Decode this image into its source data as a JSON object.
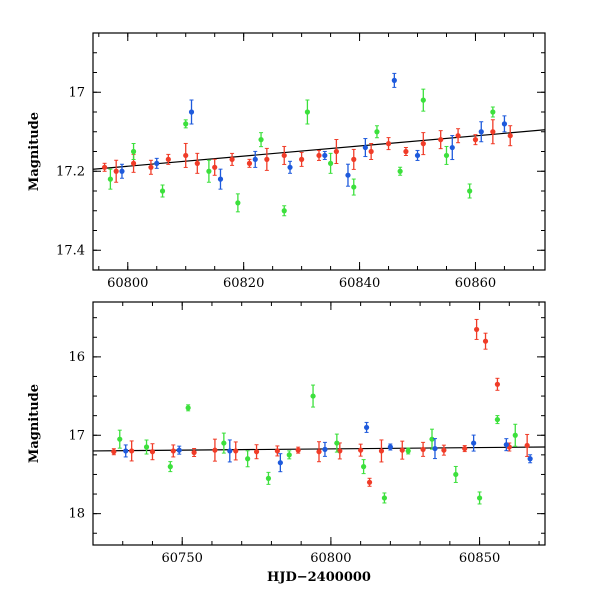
{
  "chart_data": [
    {
      "type": "scatter",
      "title": "",
      "xlabel": "",
      "ylabel": "Magnitude",
      "xlim": [
        60794,
        60872
      ],
      "ylim": [
        17.45,
        16.85
      ],
      "y_inverted": true,
      "grid": false,
      "xticks": [
        60800,
        60820,
        60840,
        60860
      ],
      "yticks": [
        17,
        17.2,
        17.4
      ],
      "xtick_labels": [
        "60800",
        "60820",
        "60840",
        "60860"
      ],
      "ytick_labels": [
        "17",
        "17.2",
        "17.4"
      ],
      "colors": {
        "red": "#f03c28",
        "green": "#3ce03c",
        "blue": "#1e5adc"
      },
      "trend_line": {
        "x": [
          60794,
          60872
        ],
        "y": [
          17.195,
          17.095
        ]
      },
      "series": [
        {
          "color": "red",
          "x": [
            60796,
            60798,
            60801,
            60804,
            60807,
            60810,
            60812,
            60815,
            60818,
            60821,
            60824,
            60827,
            60830,
            60833,
            60836,
            60839,
            60842,
            60845,
            60848,
            60851,
            60854,
            60857,
            60860,
            60863,
            60866
          ],
          "y": [
            17.19,
            17.2,
            17.18,
            17.19,
            17.17,
            17.16,
            17.18,
            17.19,
            17.17,
            17.18,
            17.17,
            17.16,
            17.17,
            17.16,
            17.15,
            17.17,
            17.15,
            17.13,
            17.15,
            17.13,
            17.12,
            17.11,
            17.12,
            17.1,
            17.11
          ]
        },
        {
          "color": "green",
          "x": [
            60797,
            60801,
            60806,
            60810,
            60814,
            60819,
            60823,
            60827,
            60831,
            60835,
            60839,
            60843,
            60847,
            60851,
            60855,
            60859,
            60863
          ],
          "y": [
            17.22,
            17.15,
            17.25,
            17.08,
            17.2,
            17.28,
            17.12,
            17.3,
            17.05,
            17.18,
            17.24,
            17.1,
            17.2,
            17.02,
            17.16,
            17.25,
            17.05
          ]
        },
        {
          "color": "blue",
          "x": [
            60799,
            60805,
            60811,
            60816,
            60822,
            60828,
            60834,
            60838,
            60841,
            60846,
            60850,
            60856,
            60861,
            60865
          ],
          "y": [
            17.2,
            17.18,
            17.05,
            17.22,
            17.17,
            17.19,
            17.16,
            17.21,
            17.14,
            16.97,
            17.16,
            17.14,
            17.1,
            17.08
          ]
        }
      ]
    },
    {
      "type": "scatter",
      "title": "",
      "xlabel": "HJD−2400000",
      "ylabel": "Magnitude",
      "xlim": [
        60720,
        60872
      ],
      "ylim": [
        18.4,
        15.3
      ],
      "y_inverted": true,
      "grid": false,
      "xticks": [
        60750,
        60800,
        60850
      ],
      "yticks": [
        16,
        17,
        18
      ],
      "xtick_labels": [
        "60750",
        "60800",
        "60850"
      ],
      "ytick_labels": [
        "16",
        "17",
        "18"
      ],
      "colors": {
        "red": "#f03c28",
        "green": "#3ce03c",
        "blue": "#1e5adc"
      },
      "trend_line": {
        "x": [
          60720,
          60872
        ],
        "y": [
          17.2,
          17.15
        ]
      },
      "series": [
        {
          "color": "red",
          "x": [
            60727,
            60733,
            60740,
            60747,
            60754,
            60761,
            60768,
            60775,
            60782,
            60789,
            60796,
            60803,
            60810,
            60813,
            60817,
            60824,
            60831,
            60838,
            60845,
            60849,
            60852,
            60856,
            60860,
            60866
          ],
          "y": [
            17.21,
            17.2,
            17.21,
            17.2,
            17.22,
            17.19,
            17.2,
            17.21,
            17.2,
            17.19,
            17.21,
            17.2,
            17.19,
            17.6,
            17.2,
            17.19,
            17.18,
            17.19,
            17.17,
            15.65,
            15.8,
            16.35,
            17.15,
            17.13
          ]
        },
        {
          "color": "green",
          "x": [
            60729,
            60738,
            60746,
            60752,
            60764,
            60772,
            60779,
            60786,
            60794,
            60802,
            60811,
            60818,
            60826,
            60834,
            60842,
            60850,
            60856,
            60862
          ],
          "y": [
            17.05,
            17.15,
            17.4,
            16.65,
            17.1,
            17.3,
            17.55,
            17.25,
            16.5,
            17.1,
            17.4,
            17.8,
            17.2,
            17.05,
            17.5,
            17.8,
            16.8,
            17.0
          ]
        },
        {
          "color": "blue",
          "x": [
            60731,
            60749,
            60766,
            60783,
            60798,
            60812,
            60820,
            60835,
            60848,
            60859,
            60867
          ],
          "y": [
            17.2,
            17.19,
            17.2,
            17.35,
            17.18,
            16.9,
            17.15,
            17.17,
            17.1,
            17.12,
            17.3
          ]
        }
      ]
    }
  ]
}
